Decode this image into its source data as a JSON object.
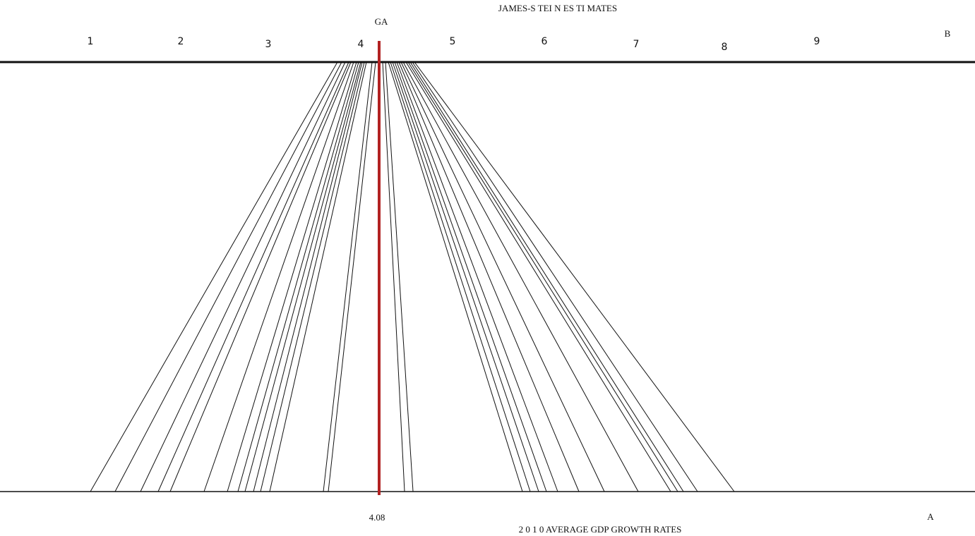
{
  "diagram": {
    "title_top": "JAMES-S TEI N ES TI MATES",
    "title_bottom": "2 0 1 0 AVERAGE GDP GROWTH RATES",
    "line_labels": {
      "top": "B",
      "bottom": "A"
    },
    "center_label": "GA",
    "mean_label": "4.08",
    "top_tick_labels": [
      "1",
      "2",
      "3",
      "4",
      "5",
      "6",
      "7",
      "8",
      "9"
    ],
    "colors": {
      "background": "#ffffff",
      "line": "#111111",
      "mean_line": "#b22222"
    }
  },
  "chart_data": {
    "type": "diagram",
    "mean": 4.08,
    "top_ticks": [
      1,
      2,
      3,
      4,
      5,
      6,
      7,
      8,
      9
    ]
  }
}
